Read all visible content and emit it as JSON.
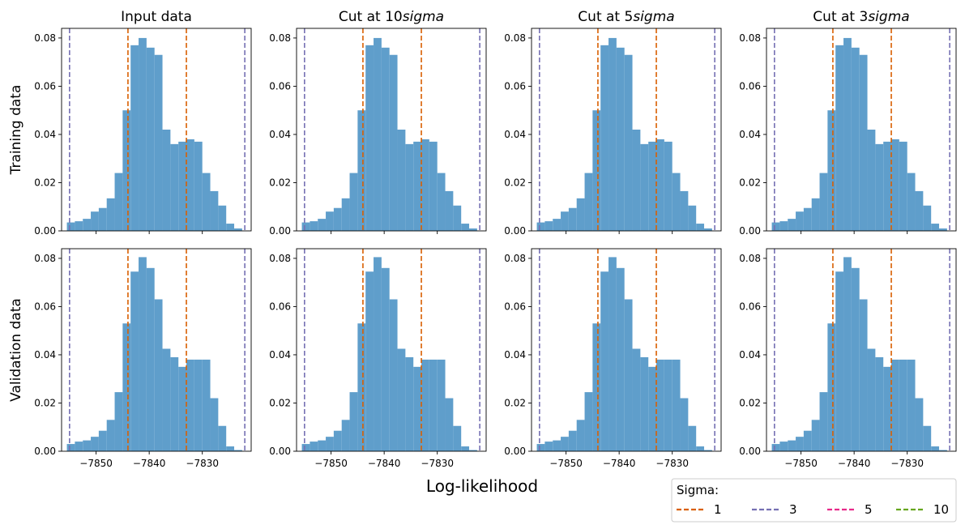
{
  "chart_data": {
    "type": "bar",
    "description_layout": "2 rows x 4 columns of histograms sharing axes",
    "xlabel": "Log-likelihood",
    "row_labels": [
      "Training data",
      "Validation data"
    ],
    "col_titles": [
      {
        "prefix": "Input data",
        "italic": ""
      },
      {
        "prefix": "Cut at 10",
        "italic": "sigma"
      },
      {
        "prefix": "Cut at 5",
        "italic": "sigma"
      },
      {
        "prefix": "Cut at 3",
        "italic": "sigma"
      }
    ],
    "xlim": [
      -7856.5,
      -7820.8
    ],
    "ylim": [
      0,
      0.084
    ],
    "xticks": [
      -7850,
      -7840,
      -7830
    ],
    "xtick_labels": [
      "−7850",
      "−7840",
      "−7830"
    ],
    "yticks": [
      0.0,
      0.02,
      0.04,
      0.06,
      0.08
    ],
    "ytick_labels": [
      "0.00",
      "0.02",
      "0.04",
      "0.06",
      "0.08"
    ],
    "bin_edges": [
      -7855.5,
      -7854.0,
      -7852.5,
      -7851.0,
      -7849.5,
      -7848.0,
      -7846.5,
      -7845.0,
      -7843.5,
      -7842.0,
      -7840.5,
      -7839.0,
      -7837.5,
      -7836.0,
      -7834.5,
      -7833.0,
      -7831.5,
      -7830.0,
      -7828.5,
      -7827.0,
      -7825.5,
      -7824.0,
      -7822.5
    ],
    "bar_color": "#5f9ecb",
    "series": [
      {
        "values": [
          0.0035,
          0.004,
          0.005,
          0.008,
          0.0095,
          0.0135,
          0.024,
          0.05,
          0.077,
          0.08,
          0.076,
          0.073,
          0.042,
          0.036,
          0.037,
          0.038,
          0.037,
          0.024,
          0.0165,
          0.0105,
          0.003,
          0.001
        ]
      },
      {
        "values": [
          0.003,
          0.004,
          0.0045,
          0.006,
          0.0085,
          0.013,
          0.0245,
          0.053,
          0.0745,
          0.0805,
          0.076,
          0.063,
          0.0425,
          0.039,
          0.035,
          0.038,
          0.038,
          0.038,
          0.022,
          0.0105,
          0.002,
          0.0005
        ]
      }
    ],
    "vlines": [
      {
        "sigma": "1",
        "x": [
          -7844.0,
          -7833.0
        ],
        "color": "#d95f02"
      },
      {
        "sigma": "3",
        "x": [
          -7855.0,
          -7822.0
        ],
        "color": "#7570b3"
      }
    ],
    "legend": {
      "title": "Sigma:",
      "placement": "bottom-right",
      "entries": [
        {
          "label": "1",
          "color": "#d95f02"
        },
        {
          "label": "3",
          "color": "#7570b3"
        },
        {
          "label": "5",
          "color": "#e7298a"
        },
        {
          "label": "10",
          "color": "#66a61e"
        }
      ]
    },
    "grid": false
  }
}
